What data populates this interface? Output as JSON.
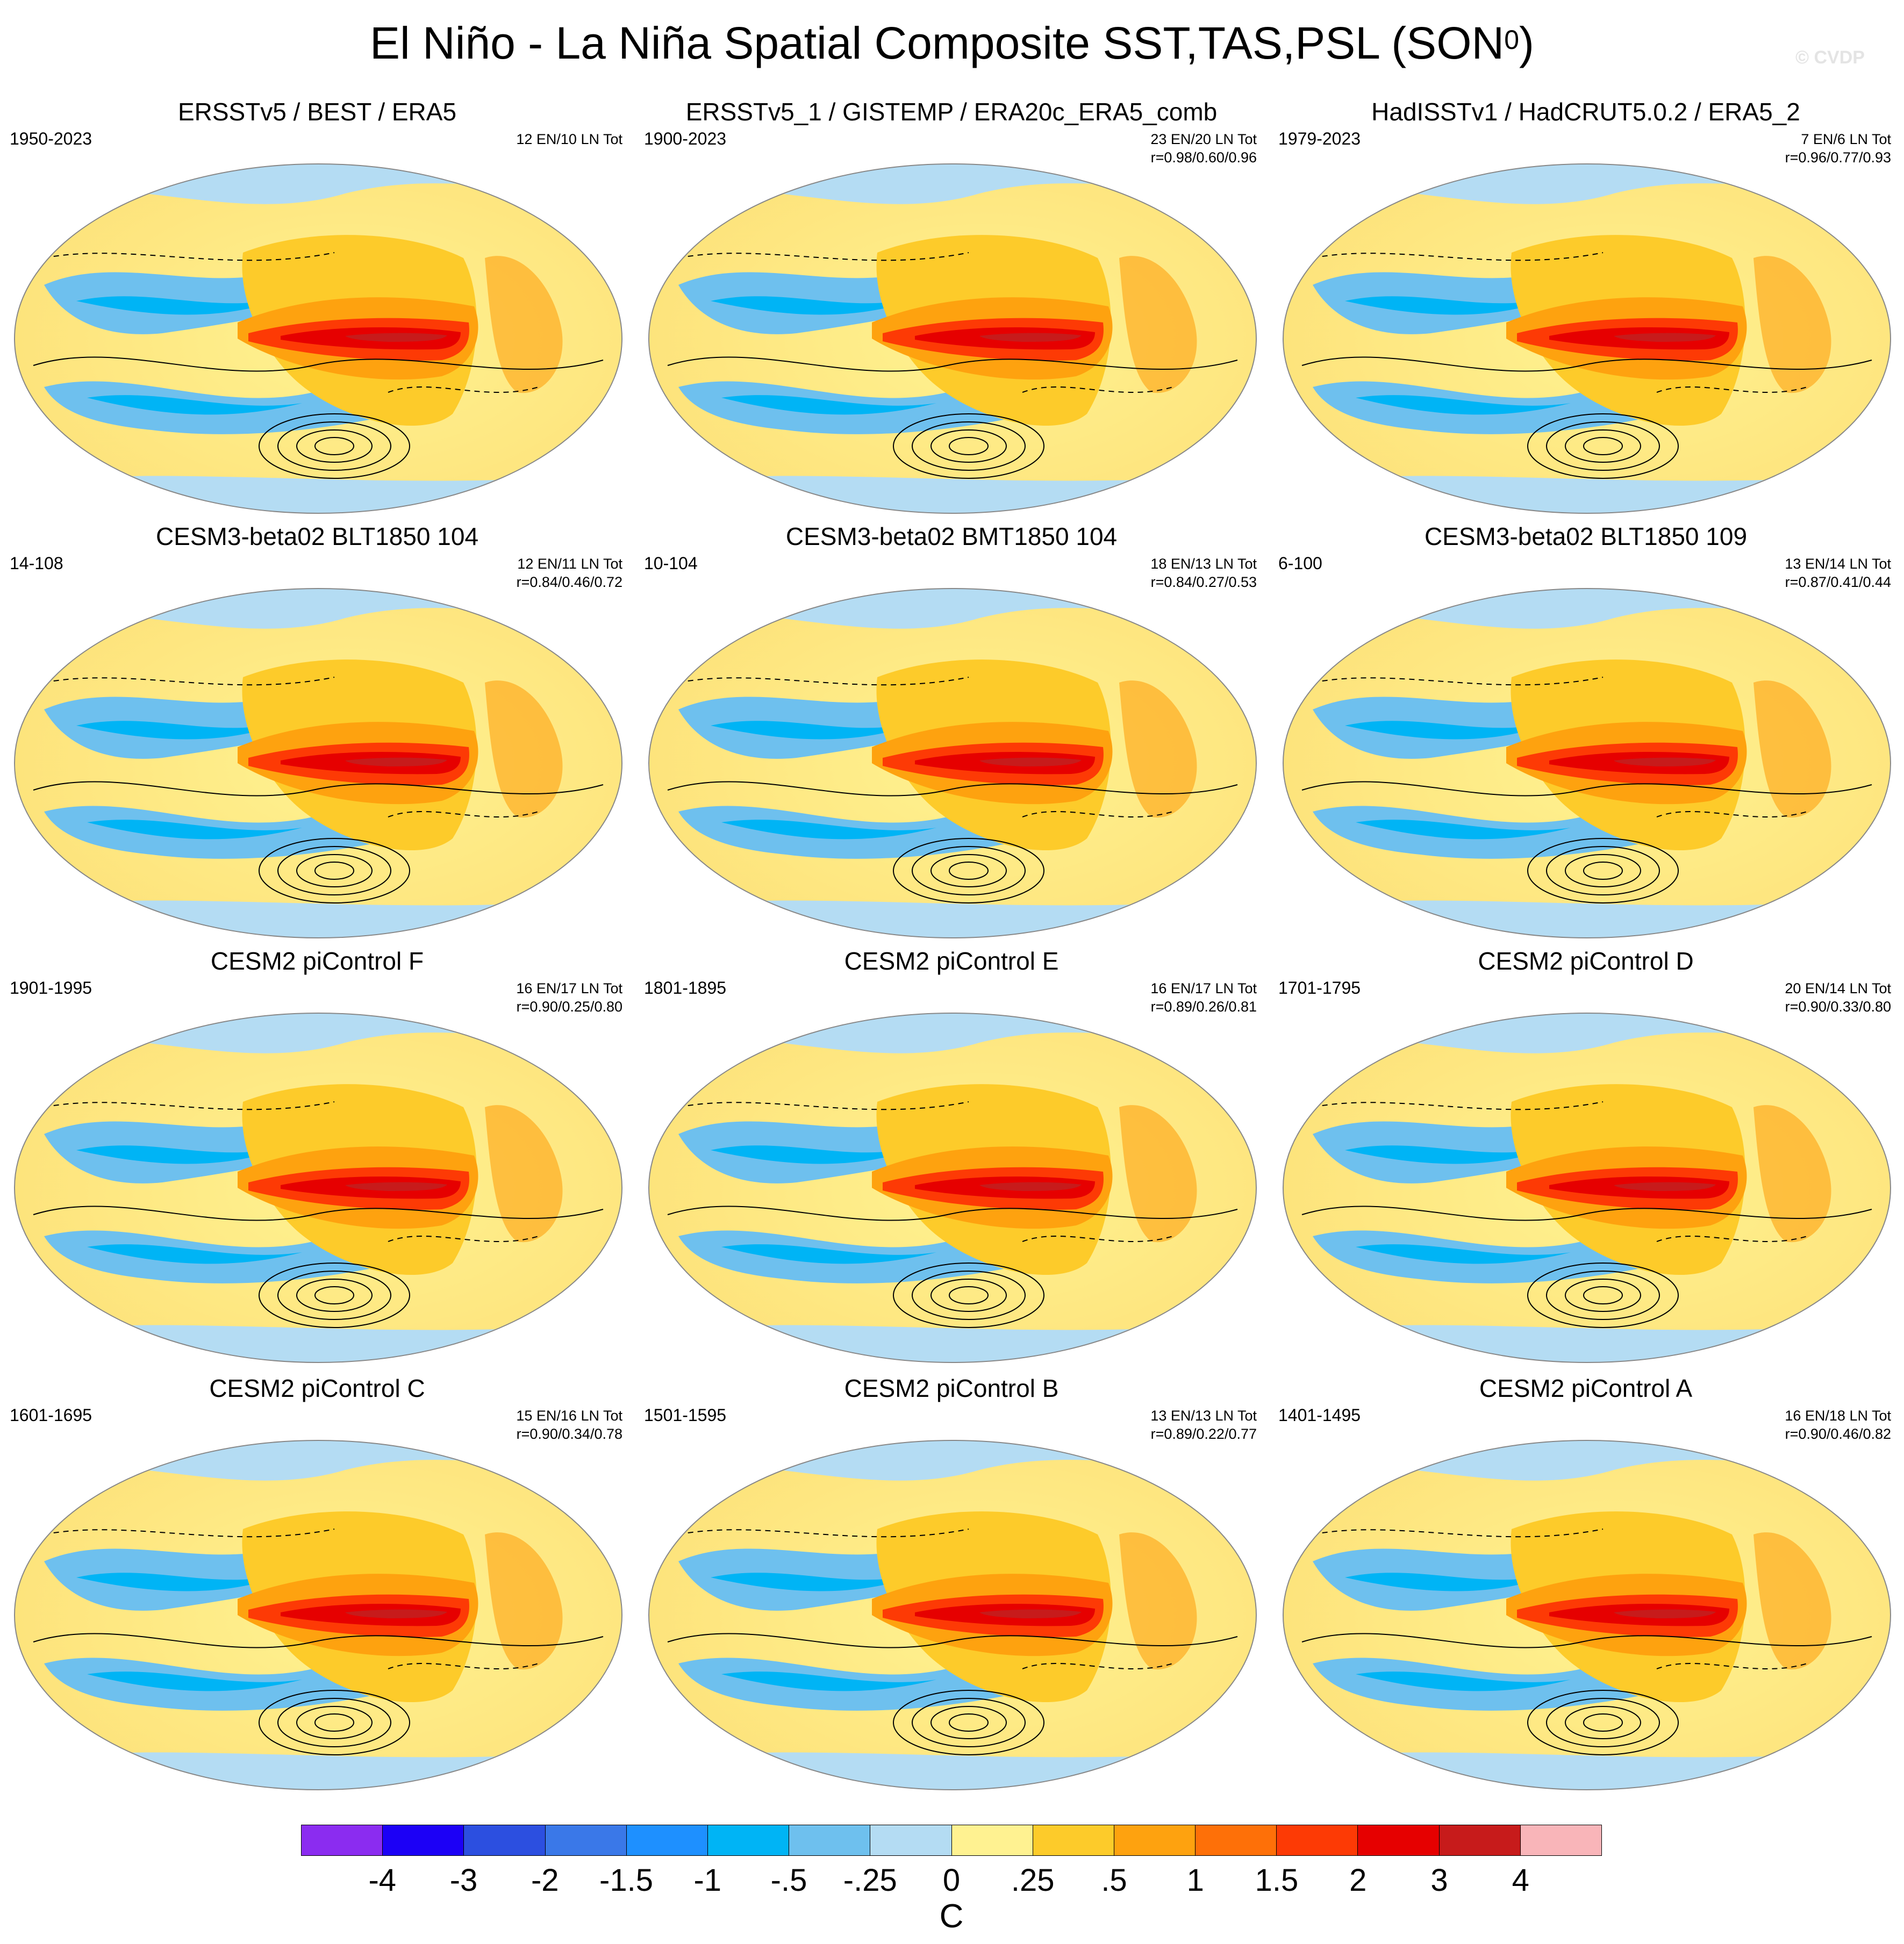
{
  "figure": {
    "title": "El Niño - La Niña Spatial Composite SST,TAS,PSL (SON",
    "title_sup": "0",
    "title_end": ")",
    "watermark": "© CVDP"
  },
  "panels": [
    {
      "title": "ERSSTv5 / BEST / ERA5",
      "years": "1950-2023",
      "count": "12 EN/10 LN Tot",
      "corr": ""
    },
    {
      "title": "ERSSTv5_1 / GISTEMP / ERA20c_ERA5_comb",
      "years": "1900-2023",
      "count": "23 EN/20 LN Tot",
      "corr": "r=0.98/0.60/0.96"
    },
    {
      "title": "HadISSTv1 / HadCRUT5.0.2 / ERA5_2",
      "years": "1979-2023",
      "count": "7 EN/6 LN Tot",
      "corr": "r=0.96/0.77/0.93"
    },
    {
      "title": "CESM3-beta02 BLT1850 104",
      "years": "14-108",
      "count": "12 EN/11 LN Tot",
      "corr": "r=0.84/0.46/0.72"
    },
    {
      "title": "CESM3-beta02 BMT1850 104",
      "years": "10-104",
      "count": "18 EN/13 LN Tot",
      "corr": "r=0.84/0.27/0.53"
    },
    {
      "title": "CESM3-beta02 BLT1850 109",
      "years": "6-100",
      "count": "13 EN/14 LN Tot",
      "corr": "r=0.87/0.41/0.44"
    },
    {
      "title": "CESM2 piControl F",
      "years": "1901-1995",
      "count": "16 EN/17 LN Tot",
      "corr": "r=0.90/0.25/0.80"
    },
    {
      "title": "CESM2 piControl E",
      "years": "1801-1895",
      "count": "16 EN/17 LN Tot",
      "corr": "r=0.89/0.26/0.81"
    },
    {
      "title": "CESM2 piControl D",
      "years": "1701-1795",
      "count": "20 EN/14 LN Tot",
      "corr": "r=0.90/0.33/0.80"
    },
    {
      "title": "CESM2 piControl C",
      "years": "1601-1695",
      "count": "15 EN/16 LN Tot",
      "corr": "r=0.90/0.34/0.78"
    },
    {
      "title": "CESM2 piControl B",
      "years": "1501-1595",
      "count": "13 EN/13 LN Tot",
      "corr": "r=0.89/0.22/0.77"
    },
    {
      "title": "CESM2 piControl A",
      "years": "1401-1495",
      "count": "16 EN/18 LN Tot",
      "corr": "r=0.90/0.46/0.82"
    }
  ],
  "colorbar": {
    "unit": "C",
    "ticks": [
      "-4",
      "-3",
      "-2",
      "-1.5",
      "-1",
      "-.5",
      "-.25",
      "0",
      ".25",
      ".5",
      "1",
      "1.5",
      "2",
      "3",
      "4"
    ],
    "colors": [
      "#8b2cf0",
      "#1c00f6",
      "#2c4fe0",
      "#3a78e8",
      "#1e90ff",
      "#00b4f5",
      "#6ec0ee",
      "#b4dcf3",
      "#fff291",
      "#fdcb2a",
      "#fea20f",
      "#fe7008",
      "#fd3a05",
      "#e60000",
      "#c71b1b",
      "#f9b5b9"
    ]
  }
}
